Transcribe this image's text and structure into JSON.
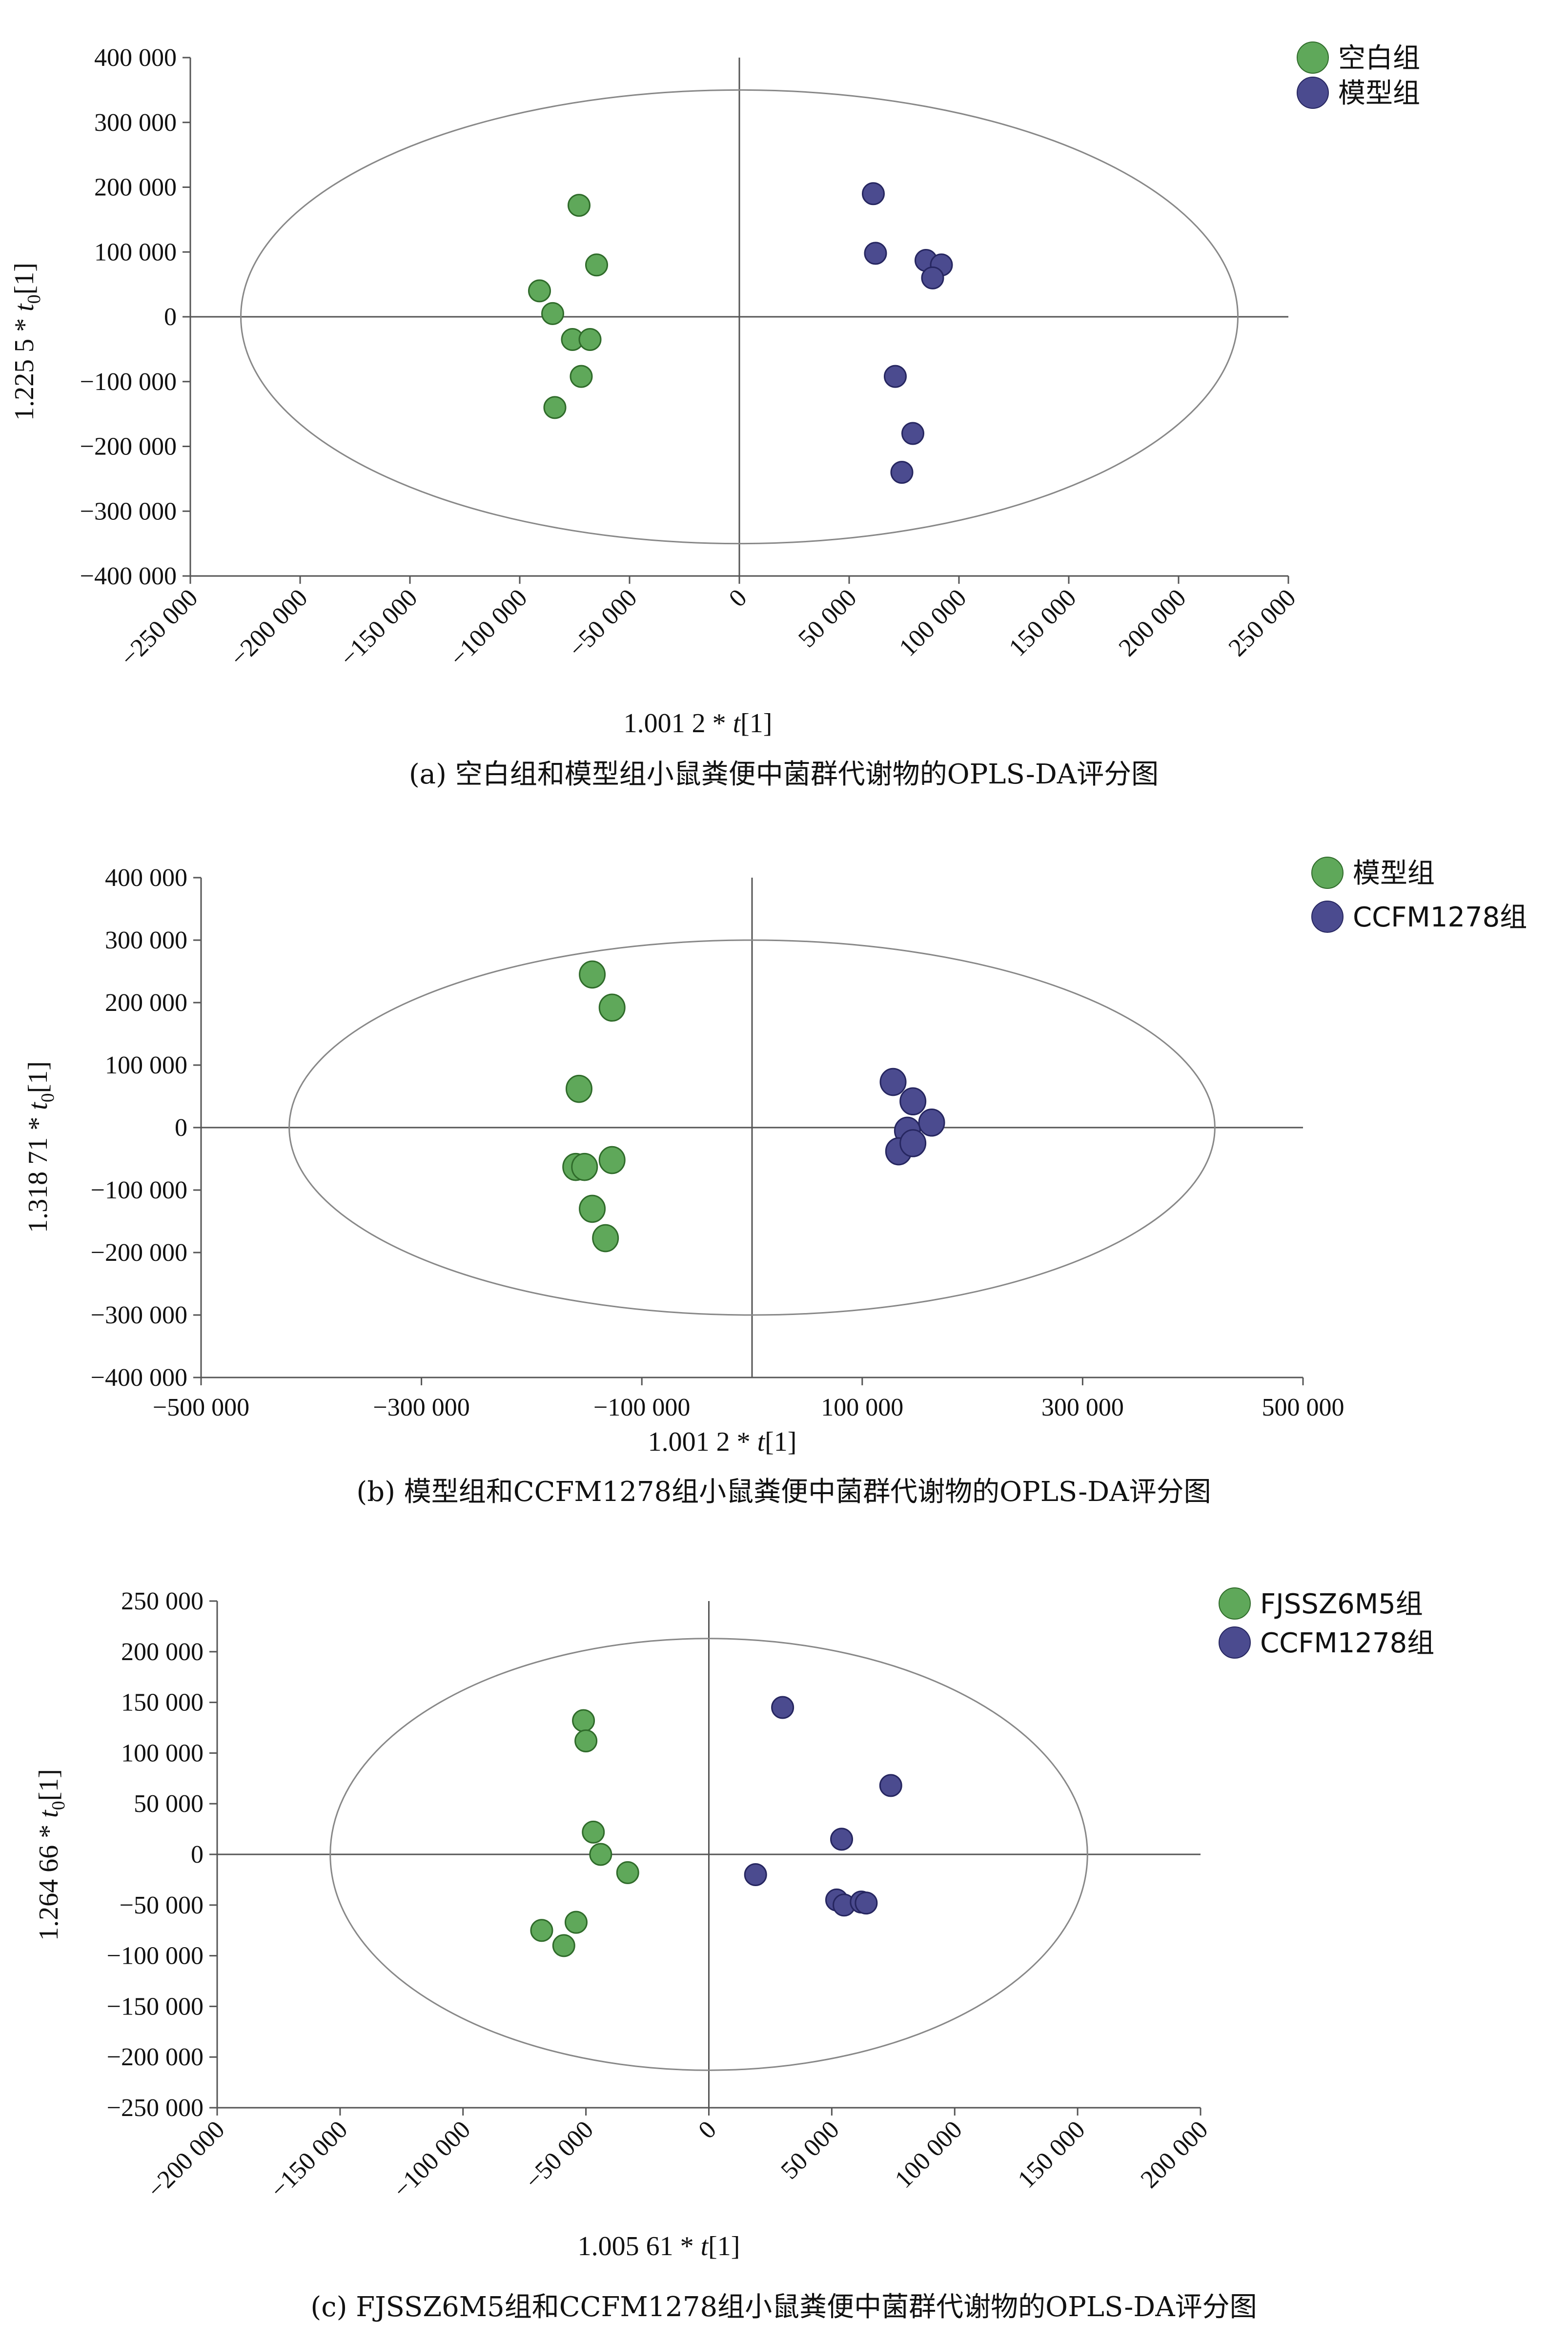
{
  "colors": {
    "green": "#5fa85a",
    "green_edge": "#2f6b2a",
    "blue": "#4b4b8f",
    "blue_edge": "#262660",
    "axis": "#555555",
    "ellipse": "#888888"
  },
  "chart_data": [
    {
      "type": "scatter",
      "caption": "(a) 空白组和模型组小鼠粪便中菌群代谢物的OPLS-DA评分图",
      "xlabel": {
        "coef": "1.001 2 * ",
        "var": "t",
        "suffix": "[1]"
      },
      "ylabel": {
        "coef": "1.225 5 * ",
        "var": "t",
        "sub": "0",
        "suffix": "[1]"
      },
      "xlim": [
        -250000,
        250000
      ],
      "ylim": [
        -400000,
        400000
      ],
      "xticks": [
        -250000,
        -200000,
        -150000,
        -100000,
        -50000,
        0,
        50000,
        100000,
        150000,
        200000,
        250000
      ],
      "xtick_labels": [
        "−250 000",
        "−200 000",
        "−150 000",
        "−100 000",
        "−50 000",
        "0",
        "50 000",
        "100 000",
        "150 000",
        "200 000",
        "250 000"
      ],
      "yticks": [
        400000,
        300000,
        200000,
        100000,
        0,
        -100000,
        -200000,
        -300000,
        -400000
      ],
      "ytick_labels": [
        "400 000",
        "300 000",
        "200 000",
        "100 000",
        "0",
        "−100 000",
        "−200 000",
        "−300 000",
        "−400 000"
      ],
      "xtick_rotate": true,
      "ellipse": {
        "rx": 227000,
        "ry": 350000
      },
      "legend_position": "top-right",
      "series": [
        {
          "name": "空白组",
          "color": "green",
          "x": [
            -73000,
            -65000,
            -91000,
            -85000,
            -76000,
            -68000,
            -72000,
            -84000
          ],
          "y": [
            172000,
            80000,
            40000,
            5000,
            -35000,
            -35000,
            -92000,
            -140000
          ]
        },
        {
          "name": "模型组",
          "color": "blue",
          "x": [
            61000,
            62000,
            85000,
            92000,
            88000,
            71000,
            79000,
            74000
          ],
          "y": [
            190000,
            98000,
            87000,
            80000,
            60000,
            -92000,
            -180000,
            -240000
          ]
        }
      ]
    },
    {
      "type": "scatter",
      "caption": "(b) 模型组和CCFM1278组小鼠粪便中菌群代谢物的OPLS-DA评分图",
      "xlabel": {
        "coef": "1.001 2 * ",
        "var": "t",
        "suffix": "[1]"
      },
      "ylabel": {
        "coef": "1.318 71 * ",
        "var": "t",
        "sub": "0",
        "suffix": "[1]"
      },
      "xlim": [
        -500000,
        500000
      ],
      "ylim": [
        -400000,
        400000
      ],
      "xticks": [
        -500000,
        -300000,
        -100000,
        100000,
        300000,
        500000
      ],
      "xtick_labels": [
        "−500 000",
        "−300 000",
        "−100 000",
        "100 000",
        "300 000",
        "500 000"
      ],
      "yticks": [
        400000,
        300000,
        200000,
        100000,
        0,
        -100000,
        -200000,
        -300000,
        -400000
      ],
      "ytick_labels": [
        "400 000",
        "300 000",
        "200 000",
        "100 000",
        "0",
        "−100 000",
        "−200 000",
        "−300 000",
        "−400 000"
      ],
      "xtick_rotate": false,
      "ellipse": {
        "rx": 420000,
        "ry": 300000
      },
      "legend_position": "top-right",
      "series": [
        {
          "name": "模型组",
          "color": "green",
          "x": [
            -145000,
            -127000,
            -157000,
            -127000,
            -160000,
            -152000,
            -145000,
            -133000
          ],
          "y": [
            245000,
            192000,
            62000,
            -52000,
            -63000,
            -63000,
            -130000,
            -177000
          ]
        },
        {
          "name": "CCFM1278组",
          "color": "blue",
          "x": [
            128000,
            146000,
            163000,
            141000,
            133000,
            146000
          ],
          "y": [
            73000,
            42000,
            8000,
            -5000,
            -38000,
            -25000
          ]
        }
      ]
    },
    {
      "type": "scatter",
      "caption": "(c) FJSSZ6M5组和CCFM1278组小鼠粪便中菌群代谢物的OPLS-DA评分图",
      "xlabel": {
        "coef": "1.005 61 * ",
        "var": "t",
        "suffix": "[1]"
      },
      "ylabel": {
        "coef": "1.264 66 * ",
        "var": "t",
        "sub": "0",
        "suffix": "[1]"
      },
      "xlim": [
        -200000,
        200000
      ],
      "ylim": [
        -250000,
        250000
      ],
      "xticks": [
        -200000,
        -150000,
        -100000,
        -50000,
        0,
        50000,
        100000,
        150000,
        200000
      ],
      "xtick_labels": [
        "−200 000",
        "−150 000",
        "−100 000",
        "−50 000",
        "0",
        "50 000",
        "100 000",
        "150 000",
        "200 000"
      ],
      "yticks": [
        250000,
        200000,
        150000,
        100000,
        50000,
        0,
        -50000,
        -100000,
        -150000,
        -200000,
        -250000
      ],
      "ytick_labels": [
        "250 000",
        "200 000",
        "150 000",
        "100 000",
        "50 000",
        "0",
        "−50 000",
        "−100 000",
        "−150 000",
        "−200 000",
        "−250 000"
      ],
      "xtick_rotate": true,
      "ellipse": {
        "rx": 154000,
        "ry": 213000
      },
      "legend_position": "top-right",
      "series": [
        {
          "name": "FJSSZ6M5组",
          "color": "green",
          "x": [
            -51000,
            -50000,
            -47000,
            -44000,
            -33000,
            -68000,
            -54000,
            -59000
          ],
          "y": [
            132000,
            112000,
            22000,
            0,
            -18000,
            -75000,
            -67000,
            -90000
          ]
        },
        {
          "name": "CCFM1278组",
          "color": "blue",
          "x": [
            30000,
            74000,
            54000,
            19000,
            52000,
            55000,
            62000,
            64000
          ],
          "y": [
            145000,
            68000,
            15000,
            -20000,
            -45000,
            -50000,
            -47000,
            -48000
          ]
        }
      ]
    }
  ]
}
